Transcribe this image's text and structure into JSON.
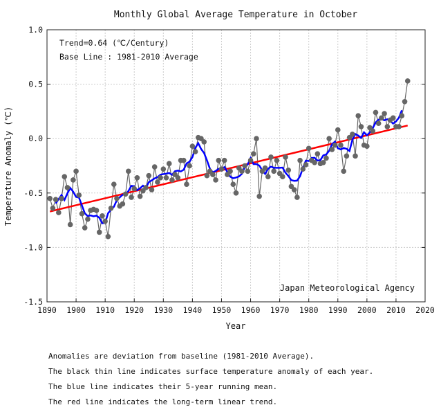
{
  "chart_data": {
    "type": "line",
    "title": "Monthly Global Average Temperature in October",
    "xlabel": "Year",
    "ylabel": "Temperature Anomaly (℃)",
    "xlim": [
      1890,
      2020
    ],
    "ylim": [
      -1.5,
      1.0
    ],
    "xticks": [
      "1890",
      "1900",
      "1910",
      "1920",
      "1930",
      "1940",
      "1950",
      "1960",
      "1970",
      "1980",
      "1990",
      "2000",
      "2010",
      "2020"
    ],
    "yticks": [
      "1.0",
      "0.5",
      "0.0",
      "-0.5",
      "-1.0",
      "-1.5"
    ],
    "grid": true,
    "annotations": [
      "Trend=0.64 (℃/Century)",
      "Base Line : 1981-2010 Average",
      "Japan Meteorological Agency"
    ],
    "colors": {
      "anomaly": "#666666",
      "running_mean": "#0000ff",
      "trend": "#ff0000"
    },
    "series": [
      {
        "label": "anomaly",
        "start_year": 1891,
        "values": [
          -0.55,
          -0.64,
          -0.56,
          -0.68,
          -0.55,
          -0.35,
          -0.45,
          -0.79,
          -0.38,
          -0.3,
          -0.52,
          -0.69,
          -0.82,
          -0.74,
          -0.66,
          -0.65,
          -0.66,
          -0.86,
          -0.71,
          -0.76,
          -0.9,
          -0.64,
          -0.42,
          -0.55,
          -0.62,
          -0.6,
          -0.51,
          -0.3,
          -0.54,
          -0.46,
          -0.36,
          -0.53,
          -0.48,
          -0.45,
          -0.34,
          -0.47,
          -0.26,
          -0.4,
          -0.36,
          -0.28,
          -0.36,
          -0.23,
          -0.38,
          -0.33,
          -0.36,
          -0.2,
          -0.2,
          -0.42,
          -0.25,
          -0.07,
          -0.12,
          0.01,
          0.0,
          -0.03,
          -0.34,
          -0.3,
          -0.33,
          -0.38,
          -0.2,
          -0.28,
          -0.2,
          -0.33,
          -0.3,
          -0.42,
          -0.5,
          -0.27,
          -0.3,
          -0.25,
          -0.3,
          -0.2,
          -0.14,
          0.0,
          -0.53,
          -0.3,
          -0.27,
          -0.35,
          -0.17,
          -0.3,
          -0.2,
          -0.32,
          -0.35,
          -0.17,
          -0.29,
          -0.44,
          -0.47,
          -0.54,
          -0.2,
          -0.28,
          -0.24,
          -0.09,
          -0.2,
          -0.22,
          -0.14,
          -0.23,
          -0.22,
          -0.18,
          0.0,
          -0.1,
          -0.06,
          0.08,
          -0.06,
          -0.3,
          -0.16,
          0.01,
          0.04,
          -0.16,
          0.21,
          0.11,
          -0.06,
          -0.07,
          0.1,
          0.07,
          0.24,
          0.14,
          0.19,
          0.23,
          0.11,
          0.17,
          0.19,
          0.11,
          0.11,
          0.21,
          0.34,
          0.53
        ]
      },
      {
        "label": "5-year running mean"
      },
      {
        "label": "linear trend",
        "x": [
          1891,
          2014
        ],
        "values": [
          -0.67,
          0.12
        ]
      }
    ]
  },
  "caption": [
    "Anomalies are deviation from baseline (1981-2010 Average).",
    "The black thin line indicates surface temperature anomaly of each year.",
    "The blue line indicates their 5-year running mean.",
    "The red line indicates the long-term linear trend."
  ]
}
